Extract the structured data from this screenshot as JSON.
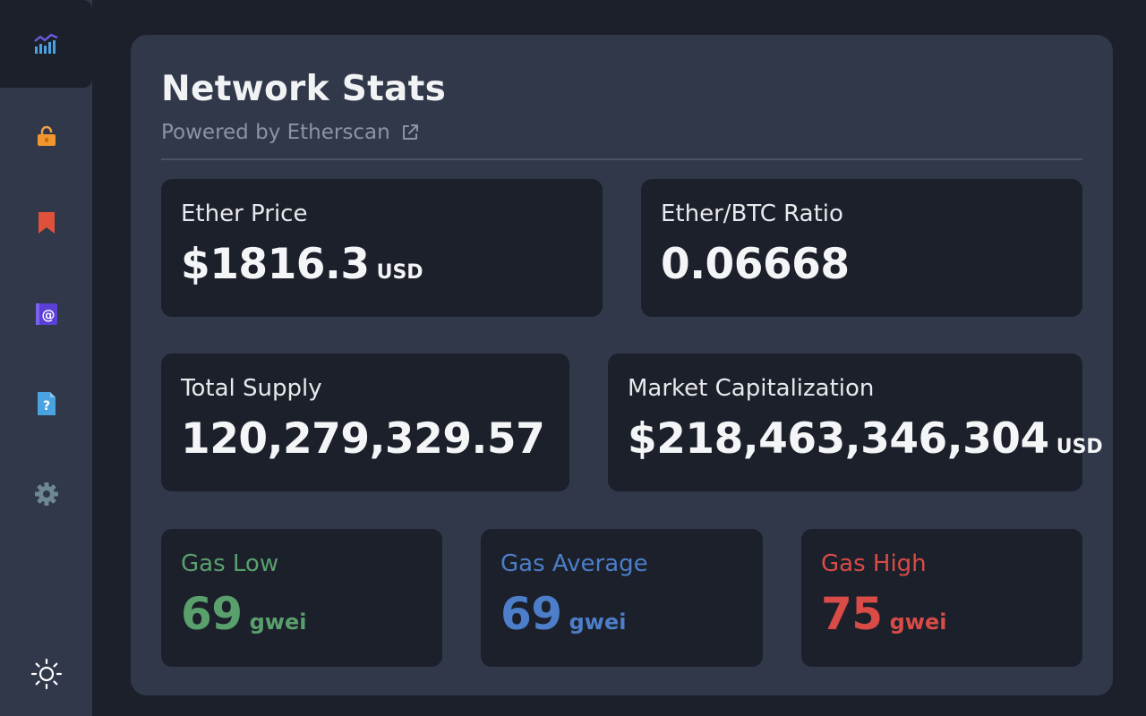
{
  "sidebar": {
    "items": [
      {
        "icon": "chart-icon",
        "active": true
      },
      {
        "icon": "lock-icon",
        "active": false
      },
      {
        "icon": "bookmark-icon",
        "active": false
      },
      {
        "icon": "at-sign-icon",
        "active": false
      },
      {
        "icon": "help-document-icon",
        "active": false
      },
      {
        "icon": "gear-icon",
        "active": false
      }
    ],
    "theme_toggle_icon": "sun-icon"
  },
  "header": {
    "title": "Network Stats",
    "subtitle": "Powered by Etherscan",
    "subtitle_icon": "external-link-icon"
  },
  "stats": {
    "ether_price": {
      "label": "Ether Price",
      "value": "$1816.3",
      "unit": "USD"
    },
    "ether_btc_ratio": {
      "label": "Ether/BTC Ratio",
      "value": "0.06668"
    },
    "total_supply": {
      "label": "Total Supply",
      "value": "120,279,329.57"
    },
    "market_cap": {
      "label": "Market Capitalization",
      "value": "$218,463,346,304",
      "unit": "USD"
    }
  },
  "gas": {
    "low": {
      "label": "Gas Low",
      "value": "69",
      "unit": "gwei",
      "color": "#5aa06d"
    },
    "average": {
      "label": "Gas Average",
      "value": "69",
      "unit": "gwei",
      "color": "#4c7ec9"
    },
    "high": {
      "label": "Gas High",
      "value": "75",
      "unit": "gwei",
      "color": "#d94b46"
    }
  },
  "colors": {
    "background": "#1c202b",
    "panel": "#30384a",
    "accent_orange": "#f0962e",
    "accent_red": "#e0513b",
    "accent_purple": "#5b3fd6",
    "accent_blue": "#4aa3e0"
  }
}
